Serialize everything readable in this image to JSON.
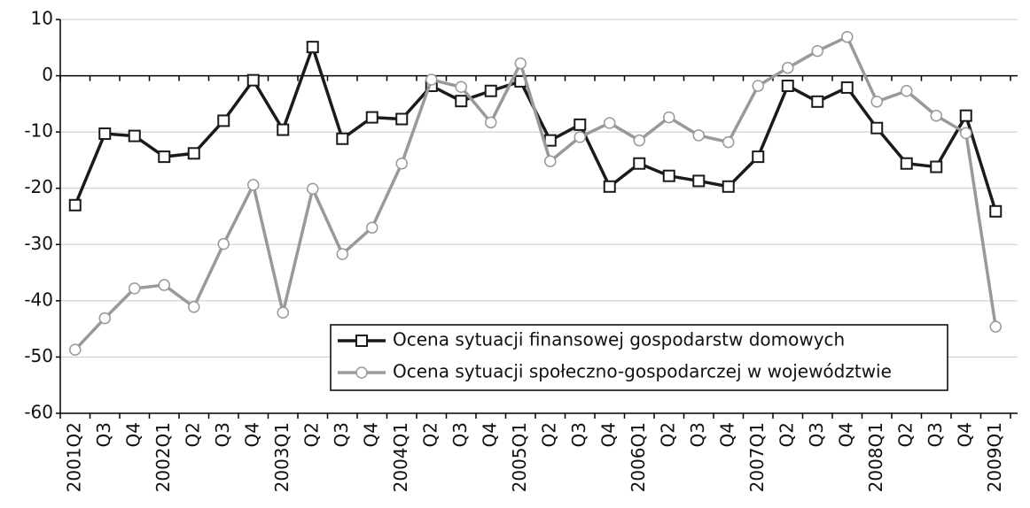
{
  "chart_data": {
    "type": "line",
    "categories": [
      "2001Q2",
      "Q3",
      "Q4",
      "2002Q1",
      "Q2",
      "Q3",
      "Q4",
      "2003Q1",
      "Q2",
      "Q3",
      "Q4",
      "2004Q1",
      "Q2",
      "Q3",
      "Q4",
      "2005Q1",
      "Q2",
      "Q3",
      "Q4",
      "2006Q1",
      "Q2",
      "Q3",
      "Q4",
      "2007Q1",
      "Q2",
      "Q3",
      "Q4",
      "2008Q1",
      "Q2",
      "Q3",
      "Q4",
      "2009Q1"
    ],
    "series": [
      {
        "name": "Ocena sytuacji finansowej gospodarstw domowych",
        "color": "#1a1a1a",
        "marker": "square",
        "values": [
          -23,
          -10.3,
          -10.7,
          -14.4,
          -13.8,
          -8,
          -0.8,
          -9.6,
          5.1,
          -11.2,
          -7.4,
          -7.7,
          -1.8,
          -4.5,
          -2.7,
          -1,
          -11.5,
          -8.7,
          -19.7,
          -15.6,
          -17.8,
          -18.7,
          -19.7,
          -14.4,
          -1.8,
          -4.6,
          -2.1,
          -9.3,
          -15.6,
          -16.2,
          -7.1,
          -24.1
        ]
      },
      {
        "name": "Ocena sytuacji społeczno-gospodarczej w województwie",
        "color": "#999999",
        "marker": "circle",
        "values": [
          -48.7,
          -43.1,
          -37.8,
          -37.2,
          -41.1,
          -29.9,
          -19.4,
          -42.1,
          -20.1,
          -31.7,
          -27,
          -15.6,
          -0.7,
          -2,
          -8.3,
          2.2,
          -15.2,
          -10.9,
          -8.4,
          -11.5,
          -7.4,
          -10.6,
          -11.8,
          -1.8,
          1.4,
          4.4,
          6.9,
          -4.6,
          -2.7,
          -7.1,
          -10.2,
          -44.6
        ]
      }
    ],
    "ylim": [
      -60,
      10
    ],
    "yticks": [
      -60,
      -50,
      -40,
      -30,
      -20,
      -10,
      0,
      10
    ],
    "grid": true,
    "legend": "bottom"
  }
}
